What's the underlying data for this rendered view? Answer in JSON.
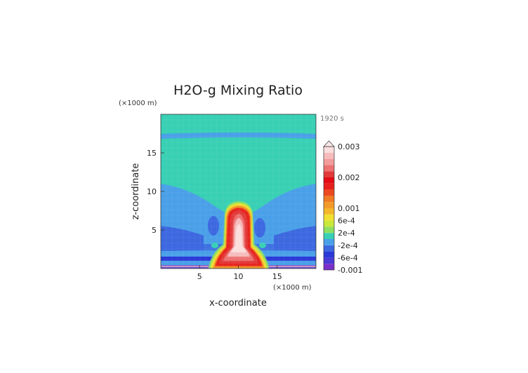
{
  "chart_data": {
    "type": "heatmap",
    "title": "H2O-g Mixing Ratio",
    "xlabel": "x-coordinate",
    "ylabel": "z-coordinate",
    "x_unit": "(×1000 m)",
    "y_unit": "(×1000 m)",
    "time_label": "1920 s",
    "xlim": [
      0,
      20
    ],
    "ylim": [
      0,
      20
    ],
    "x_ticks": [
      "5",
      "10",
      "15"
    ],
    "y_ticks": [
      "5",
      "10",
      "15"
    ],
    "colorbar": {
      "labels": [
        "0.003",
        "0.002",
        "0.001",
        "6e-4",
        "2e-4",
        "-2e-4",
        "-6e-4",
        "-0.001"
      ],
      "levels": [
        -0.001,
        -0.0008,
        -0.0006,
        -0.0004,
        -0.0002,
        0,
        0.0002,
        0.0004,
        0.0006,
        0.0008,
        0.001,
        0.0012,
        0.0014,
        0.0016,
        0.0018,
        0.002,
        0.0022,
        0.0024,
        0.0026,
        0.0028,
        0.003
      ],
      "colors": [
        "#7a2fc9",
        "#4a3ad6",
        "#2b39d8",
        "#3c68e0",
        "#4aa0e8",
        "#38d0b4",
        "#8ee060",
        "#c8e83a",
        "#f2e030",
        "#f4b62a",
        "#f29a28",
        "#f07a22",
        "#ec4a1e",
        "#e8201c",
        "#e40c14",
        "#e23a3a",
        "#ee7272",
        "#f29c9c",
        "#f6bcbc",
        "#fbdede"
      ],
      "extend_max": true
    }
  }
}
